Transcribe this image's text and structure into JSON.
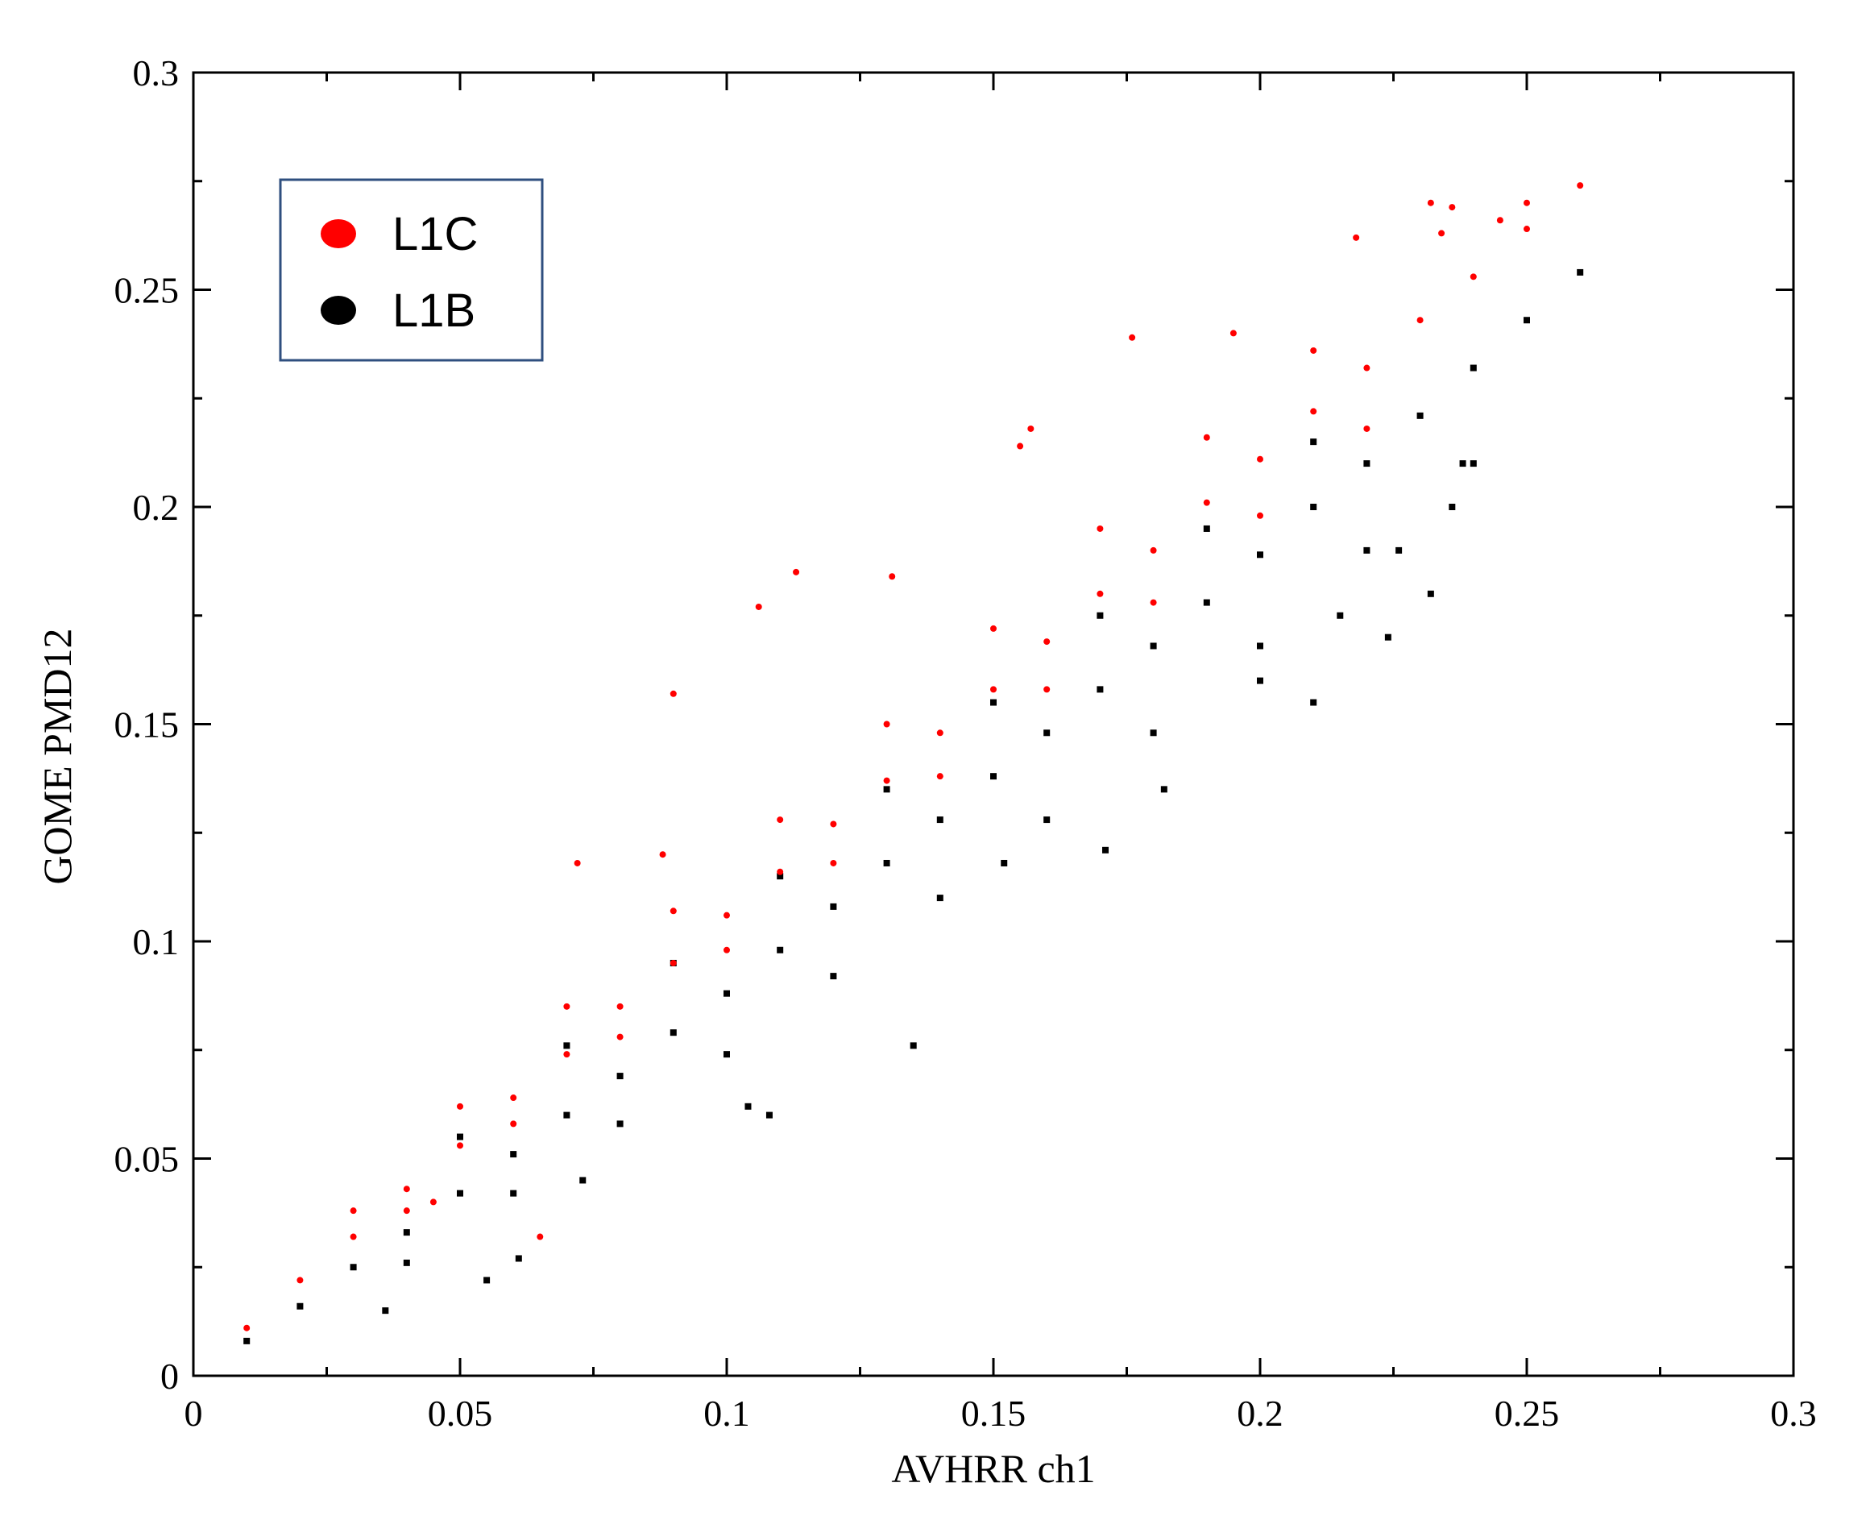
{
  "colors": {
    "background": "#ffffff",
    "axis": "#000000",
    "legend_border": "#2f4f7f",
    "L1C": "#ff0000",
    "L1B": "#000000"
  },
  "chart_data": {
    "type": "scatter",
    "title": "",
    "xlabel": "AVHRR ch1",
    "ylabel": "GOME PMD12",
    "xlim": [
      0,
      0.3
    ],
    "ylim": [
      0,
      0.3
    ],
    "grid": false,
    "legend_position": "top-left",
    "x_ticks": [
      0,
      0.05,
      0.1,
      0.15,
      0.2,
      0.25,
      0.3
    ],
    "y_ticks": [
      0,
      0.05,
      0.1,
      0.15,
      0.2,
      0.25,
      0.3
    ],
    "x_tick_labels": [
      "0",
      "0.05",
      "0.1",
      "0.15",
      "0.2",
      "0.25",
      "0.3"
    ],
    "y_tick_labels": [
      "0",
      "0.05",
      "0.1",
      "0.15",
      "0.2",
      "0.25",
      "0.3"
    ],
    "series": [
      {
        "name": "L1B",
        "color": "#000000",
        "marker": "square",
        "points": [
          [
            0.01,
            0.008
          ],
          [
            0.02,
            0.016
          ],
          [
            0.03,
            0.025
          ],
          [
            0.04,
            0.033
          ],
          [
            0.05,
            0.042
          ],
          [
            0.06,
            0.051
          ],
          [
            0.07,
            0.06
          ],
          [
            0.08,
            0.069
          ],
          [
            0.09,
            0.079
          ],
          [
            0.1,
            0.088
          ],
          [
            0.11,
            0.098
          ],
          [
            0.12,
            0.108
          ],
          [
            0.13,
            0.118
          ],
          [
            0.14,
            0.128
          ],
          [
            0.15,
            0.138
          ],
          [
            0.16,
            0.148
          ],
          [
            0.17,
            0.158
          ],
          [
            0.18,
            0.168
          ],
          [
            0.19,
            0.178
          ],
          [
            0.2,
            0.189
          ],
          [
            0.21,
            0.2
          ],
          [
            0.22,
            0.21
          ],
          [
            0.23,
            0.221
          ],
          [
            0.24,
            0.232
          ],
          [
            0.25,
            0.243
          ],
          [
            0.26,
            0.254
          ],
          [
            0.04,
            0.026
          ],
          [
            0.06,
            0.042
          ],
          [
            0.08,
            0.058
          ],
          [
            0.1,
            0.074
          ],
          [
            0.12,
            0.092
          ],
          [
            0.14,
            0.11
          ],
          [
            0.16,
            0.128
          ],
          [
            0.18,
            0.148
          ],
          [
            0.2,
            0.168
          ],
          [
            0.22,
            0.19
          ],
          [
            0.24,
            0.21
          ],
          [
            0.05,
            0.055
          ],
          [
            0.07,
            0.076
          ],
          [
            0.09,
            0.095
          ],
          [
            0.11,
            0.115
          ],
          [
            0.13,
            0.135
          ],
          [
            0.15,
            0.155
          ],
          [
            0.17,
            0.175
          ],
          [
            0.19,
            0.195
          ],
          [
            0.21,
            0.215
          ],
          [
            0.036,
            0.015
          ],
          [
            0.055,
            0.022
          ],
          [
            0.061,
            0.027
          ],
          [
            0.073,
            0.045
          ],
          [
            0.108,
            0.06
          ],
          [
            0.135,
            0.076
          ],
          [
            0.152,
            0.118
          ],
          [
            0.171,
            0.121
          ],
          [
            0.182,
            0.135
          ],
          [
            0.21,
            0.155
          ],
          [
            0.224,
            0.17
          ],
          [
            0.232,
            0.18
          ],
          [
            0.236,
            0.2
          ],
          [
            0.238,
            0.21
          ],
          [
            0.226,
            0.19
          ],
          [
            0.104,
            0.062
          ],
          [
            0.2,
            0.16
          ],
          [
            0.215,
            0.175
          ]
        ]
      },
      {
        "name": "L1C",
        "color": "#ff0000",
        "marker": "circle",
        "points": [
          [
            0.01,
            0.011
          ],
          [
            0.02,
            0.022
          ],
          [
            0.03,
            0.032
          ],
          [
            0.04,
            0.043
          ],
          [
            0.05,
            0.053
          ],
          [
            0.06,
            0.064
          ],
          [
            0.07,
            0.074
          ],
          [
            0.08,
            0.085
          ],
          [
            0.09,
            0.095
          ],
          [
            0.1,
            0.106
          ],
          [
            0.11,
            0.116
          ],
          [
            0.12,
            0.127
          ],
          [
            0.13,
            0.137
          ],
          [
            0.14,
            0.148
          ],
          [
            0.15,
            0.158
          ],
          [
            0.16,
            0.169
          ],
          [
            0.17,
            0.18
          ],
          [
            0.18,
            0.19
          ],
          [
            0.19,
            0.201
          ],
          [
            0.2,
            0.211
          ],
          [
            0.21,
            0.222
          ],
          [
            0.22,
            0.232
          ],
          [
            0.23,
            0.243
          ],
          [
            0.24,
            0.253
          ],
          [
            0.25,
            0.264
          ],
          [
            0.26,
            0.274
          ],
          [
            0.03,
            0.038
          ],
          [
            0.05,
            0.062
          ],
          [
            0.07,
            0.085
          ],
          [
            0.09,
            0.107
          ],
          [
            0.11,
            0.128
          ],
          [
            0.13,
            0.15
          ],
          [
            0.15,
            0.172
          ],
          [
            0.17,
            0.195
          ],
          [
            0.19,
            0.216
          ],
          [
            0.21,
            0.236
          ],
          [
            0.04,
            0.038
          ],
          [
            0.06,
            0.058
          ],
          [
            0.08,
            0.078
          ],
          [
            0.1,
            0.098
          ],
          [
            0.12,
            0.118
          ],
          [
            0.14,
            0.138
          ],
          [
            0.16,
            0.158
          ],
          [
            0.18,
            0.178
          ],
          [
            0.2,
            0.198
          ],
          [
            0.22,
            0.218
          ],
          [
            0.072,
            0.118
          ],
          [
            0.09,
            0.157
          ],
          [
            0.113,
            0.185
          ],
          [
            0.131,
            0.184
          ],
          [
            0.155,
            0.214
          ],
          [
            0.157,
            0.218
          ],
          [
            0.176,
            0.239
          ],
          [
            0.195,
            0.24
          ],
          [
            0.218,
            0.262
          ],
          [
            0.234,
            0.263
          ],
          [
            0.236,
            0.269
          ],
          [
            0.232,
            0.27
          ],
          [
            0.245,
            0.266
          ],
          [
            0.25,
            0.27
          ],
          [
            0.106,
            0.177
          ],
          [
            0.088,
            0.12
          ],
          [
            0.065,
            0.032
          ],
          [
            0.045,
            0.04
          ]
        ]
      }
    ]
  }
}
